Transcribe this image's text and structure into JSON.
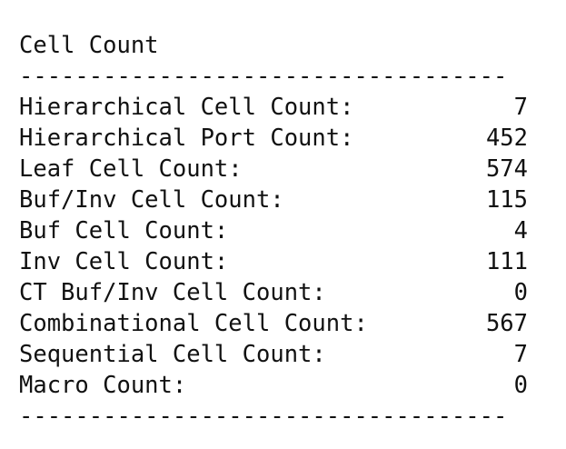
{
  "header": {
    "title": "Cell Count",
    "rule": "-----------------------------------"
  },
  "table": {
    "rows": [
      [
        "Hierarchical Cell Count:",
        7
      ],
      [
        "Hierarchical Port Count:",
        452
      ],
      [
        "Leaf Cell Count:",
        574
      ],
      [
        "Buf/Inv Cell Count:",
        115
      ],
      [
        "Buf Cell Count:",
        4
      ],
      [
        "Inv Cell Count:",
        111
      ],
      [
        "CT Buf/Inv Cell Count:",
        0
      ],
      [
        "Combinational Cell Count:",
        567
      ],
      [
        "Sequential Cell Count:",
        7
      ],
      [
        "Macro Count:",
        0
      ]
    ]
  }
}
